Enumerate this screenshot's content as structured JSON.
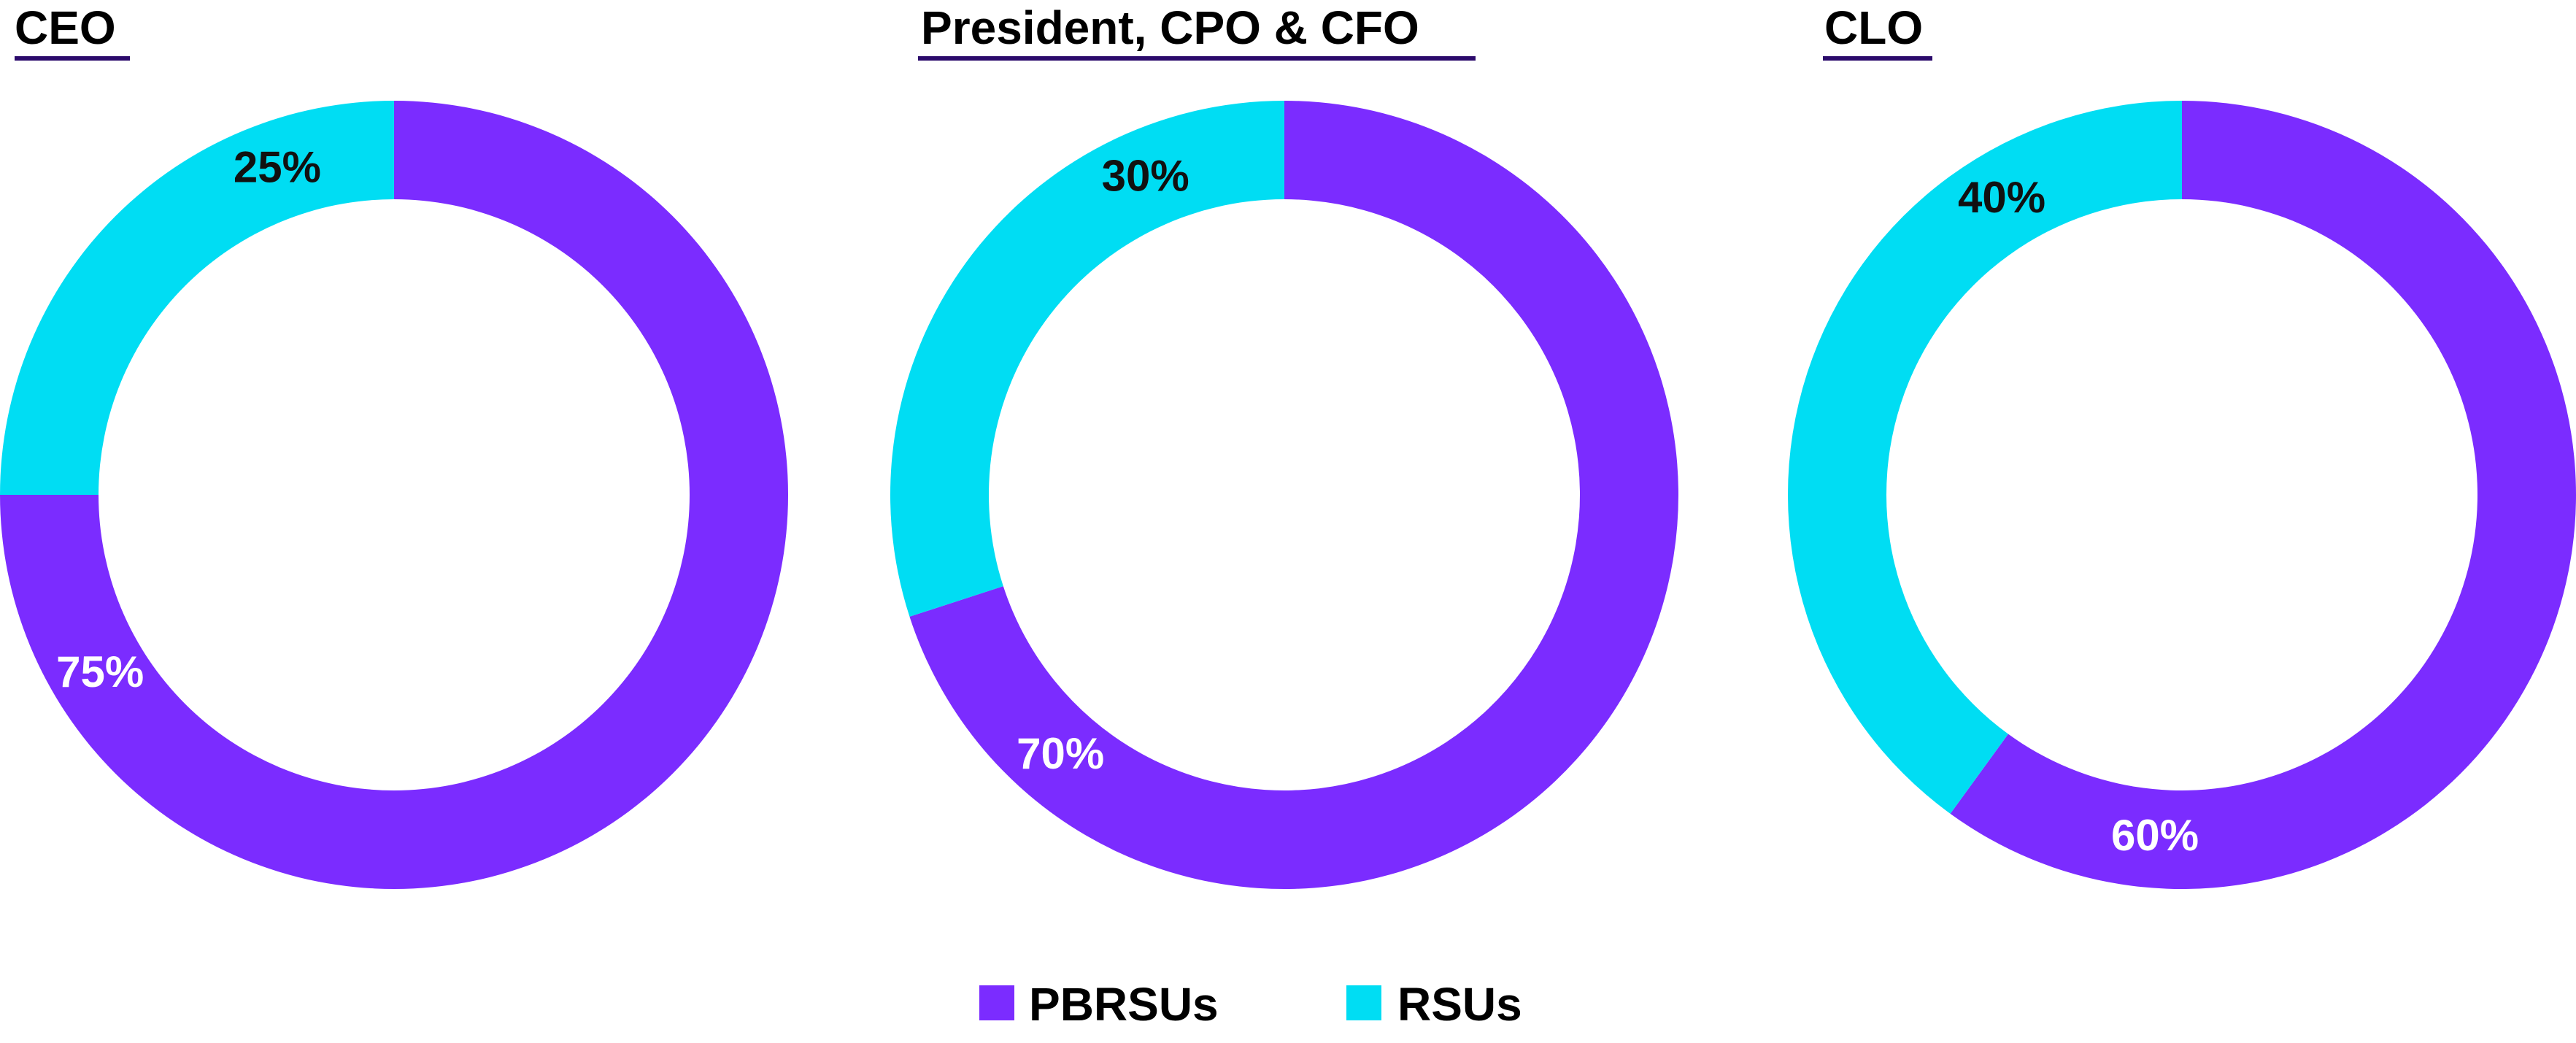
{
  "chart_data": [
    {
      "type": "pie",
      "title": "CEO",
      "categories": [
        "PBRSUs",
        "RSUs"
      ],
      "values": [
        75,
        25
      ],
      "labels": [
        "75%",
        "25%"
      ]
    },
    {
      "type": "pie",
      "title": "President, CPO & CFO",
      "categories": [
        "PBRSUs",
        "RSUs"
      ],
      "values": [
        70,
        30
      ],
      "labels": [
        "70%",
        "30%"
      ]
    },
    {
      "type": "pie",
      "title": "CLO",
      "categories": [
        "PBRSUs",
        "RSUs"
      ],
      "values": [
        60,
        40
      ],
      "labels": [
        "60%",
        "40%"
      ]
    }
  ],
  "legend": {
    "placement": "bottom",
    "items": [
      {
        "label": "PBRSUs",
        "color": "#7b2cff"
      },
      {
        "label": "RSUs",
        "color": "#00ddf3"
      }
    ]
  },
  "colors": {
    "PBRSUs": "#7b2cff",
    "RSUs": "#00ddf3",
    "title_underline": "#2b0a6b",
    "label_on_purple": "#ffffff",
    "label_on_cyan": "#111111"
  }
}
